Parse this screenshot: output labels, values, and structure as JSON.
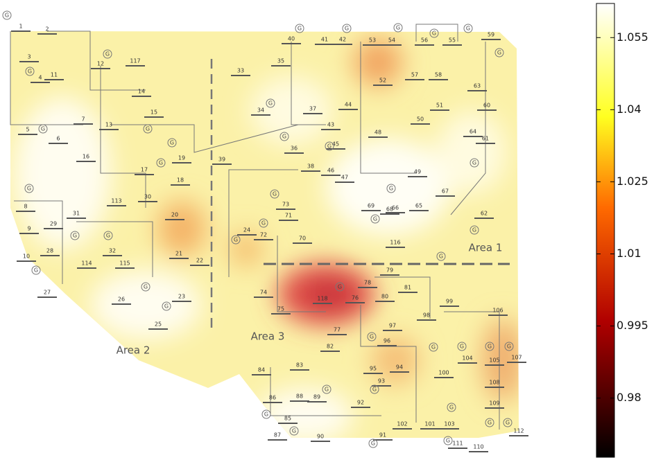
{
  "colorbar": {
    "lim": [
      0.9677,
      1.0621
    ],
    "ticks": [
      1.055,
      1.04,
      1.025,
      1.01,
      0.995,
      0.98
    ]
  },
  "areas": [
    "Area 1",
    "Area 2",
    "Area 3"
  ],
  "generator_symbol": "G",
  "buses": [
    "1",
    "2",
    "3",
    "4",
    "11",
    "12",
    "117",
    "5",
    "6",
    "7",
    "13",
    "14",
    "15",
    "16",
    "17",
    "18",
    "19",
    "113",
    "30",
    "8",
    "9",
    "10",
    "31",
    "29",
    "32",
    "28",
    "114",
    "115",
    "27",
    "26",
    "25",
    "23",
    "20",
    "21",
    "22",
    "33",
    "35",
    "40",
    "41",
    "42",
    "53",
    "54",
    "56",
    "55",
    "59",
    "52",
    "57",
    "58",
    "63",
    "51",
    "50",
    "34",
    "37",
    "44",
    "43",
    "39",
    "36",
    "45",
    "46",
    "47",
    "48",
    "49",
    "60",
    "64",
    "61",
    "38",
    "67",
    "65",
    "66",
    "69",
    "68",
    "62",
    "116",
    "73",
    "71",
    "72",
    "24",
    "70",
    "74",
    "75",
    "118",
    "76",
    "77",
    "78",
    "79",
    "80",
    "81",
    "99",
    "97",
    "98",
    "96",
    "82",
    "95",
    "94",
    "93",
    "100",
    "104",
    "105",
    "106",
    "107",
    "108",
    "109",
    "103",
    "101",
    "102",
    "92",
    "91",
    "90",
    "89",
    "88",
    "86",
    "84",
    "83",
    "85",
    "87",
    "110",
    "111",
    "112"
  ]
}
